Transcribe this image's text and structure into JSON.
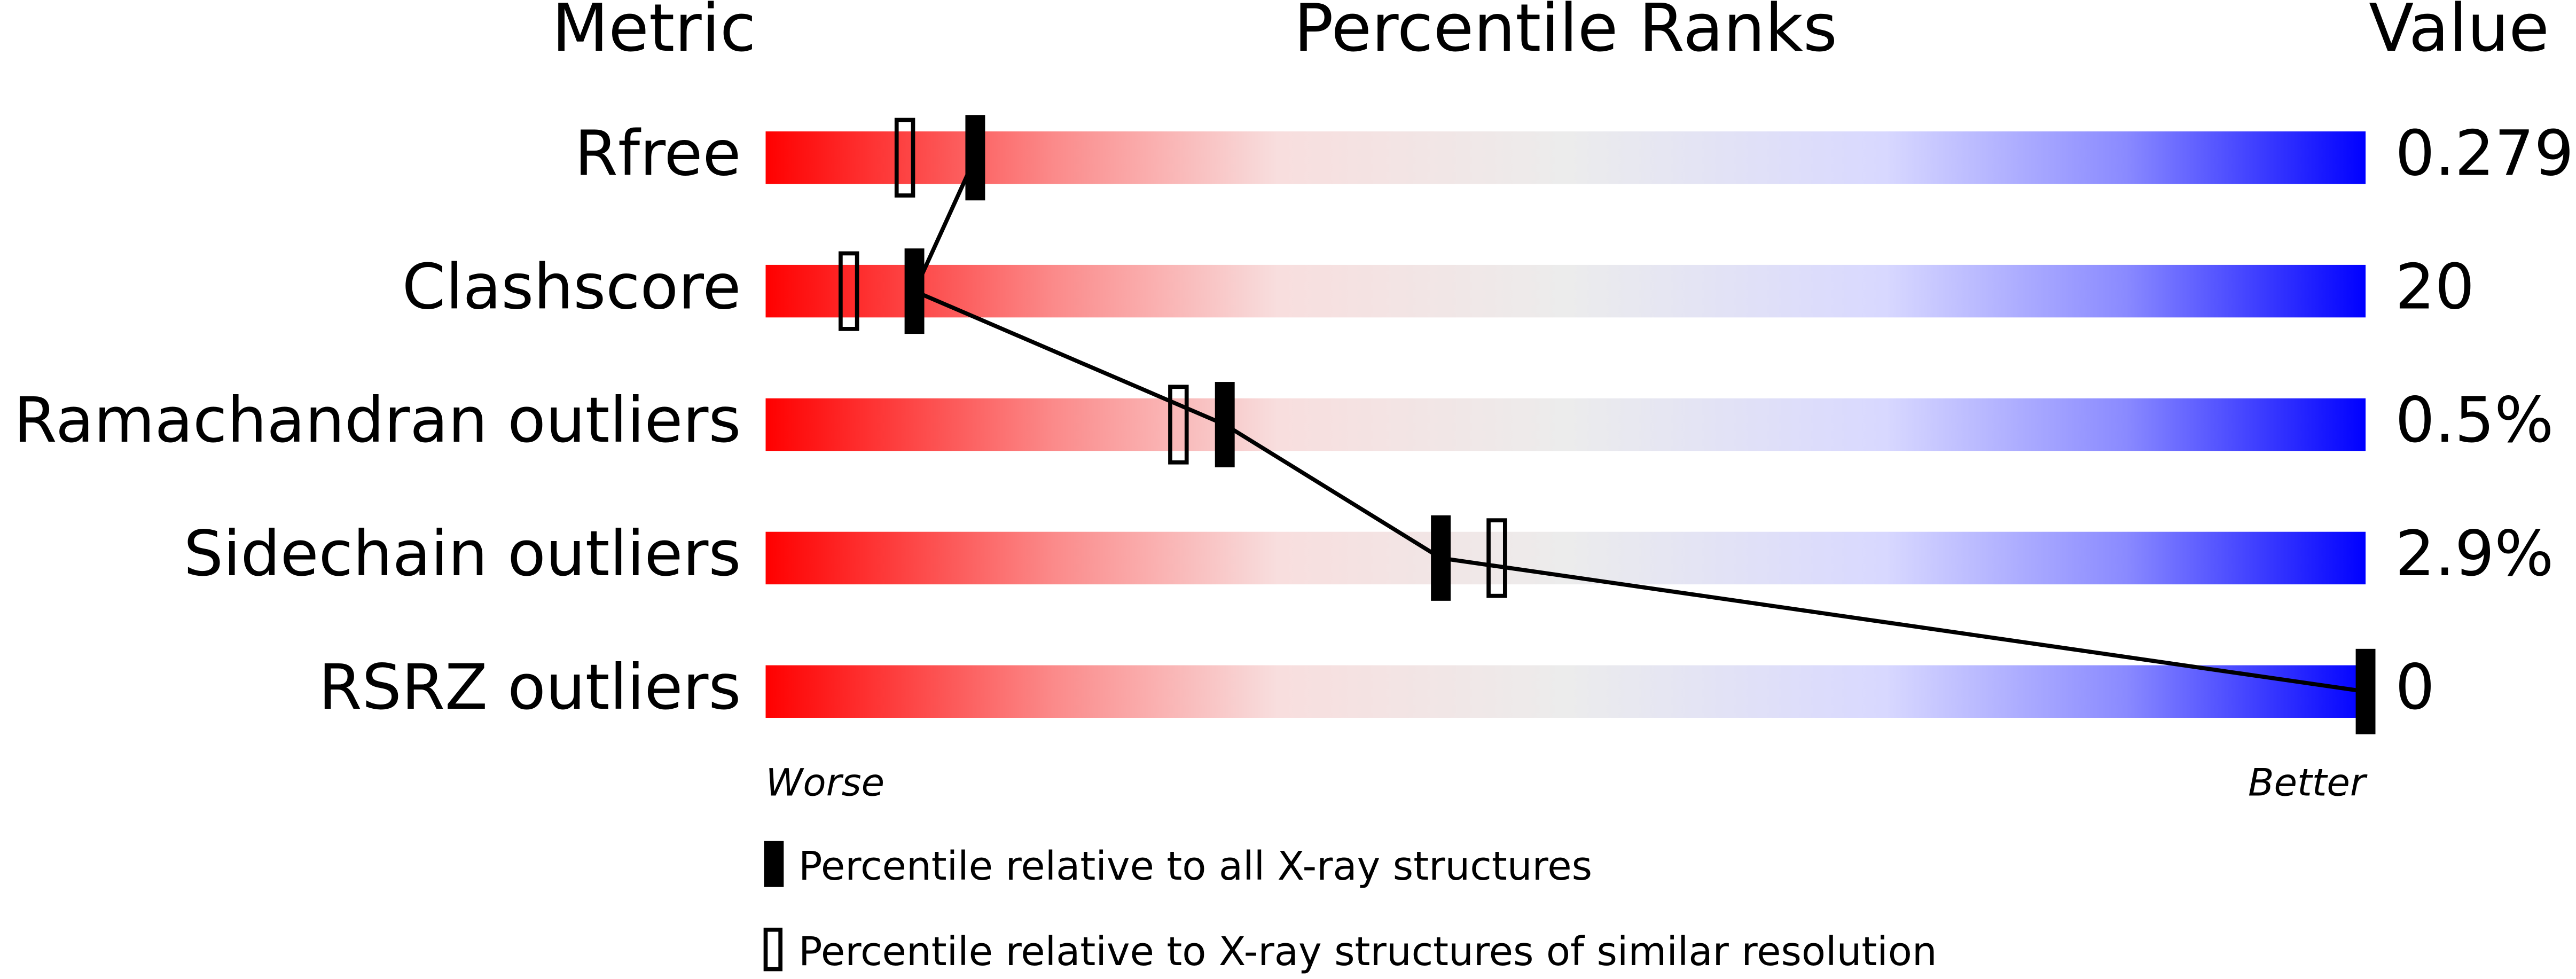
{
  "chart_data": {
    "type": "percentile",
    "headers": [
      "Metric",
      "Percentile Ranks",
      "Value"
    ],
    "categories": [
      "Rfree",
      "Clashscore",
      "Ramachandran outliers",
      "Sidechain outliers",
      "RSRZ outliers"
    ],
    "metric_values": [
      "0.279",
      "20",
      "0.5%",
      "2.9%",
      "0"
    ],
    "xlim": [
      0,
      100
    ],
    "axis_labels": [
      "Worse",
      "Better"
    ],
    "series": [
      {
        "name": "Percentile relative to all X-ray structures",
        "color": "#000000",
        "marker": "filled",
        "values": [
          13.1,
          9.3,
          28.7,
          42.2,
          100
        ]
      },
      {
        "name": "Percentile relative to X-ray structures of similar resolution",
        "color": "#000000",
        "marker": "hollow",
        "values": [
          8.7,
          5.2,
          25.8,
          45.7,
          null
        ]
      }
    ]
  }
}
